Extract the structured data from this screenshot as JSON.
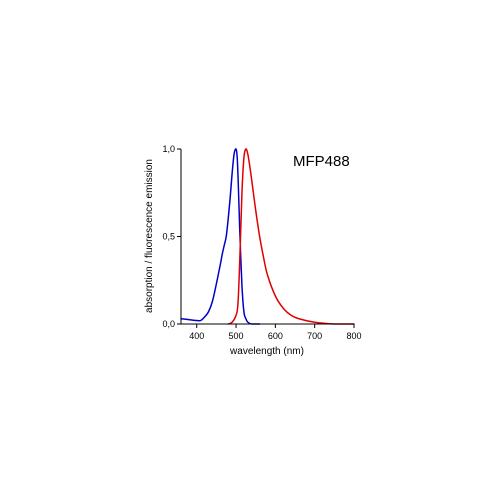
{
  "chart_data": {
    "type": "line",
    "title": "MFP488",
    "xlabel": "wavelength (nm)",
    "ylabel": "absorption / fluorescence emission",
    "xlim": [
      360,
      800
    ],
    "ylim": [
      0,
      1.0
    ],
    "x_ticks": [
      400,
      500,
      600,
      700,
      800
    ],
    "x_tick_labels": [
      "400",
      "500",
      "600",
      "700",
      "800"
    ],
    "y_ticks": [
      0,
      0.5,
      1.0
    ],
    "y_tick_labels": [
      "0,0",
      "0,5",
      "1,0"
    ],
    "grid": false,
    "series": [
      {
        "role": "absorption",
        "color": "#0000cc",
        "x": [
          360,
          380,
          400,
          410,
          420,
          430,
          440,
          450,
          460,
          465,
          470,
          475,
          480,
          485,
          490,
          495,
          500,
          503,
          506,
          510,
          515,
          520,
          525,
          530,
          540,
          560
        ],
        "y": [
          0.03,
          0.025,
          0.02,
          0.02,
          0.04,
          0.07,
          0.13,
          0.23,
          0.34,
          0.4,
          0.45,
          0.5,
          0.6,
          0.72,
          0.86,
          0.97,
          1.0,
          0.95,
          0.78,
          0.5,
          0.22,
          0.07,
          0.03,
          0.01,
          0.0,
          0.0
        ]
      },
      {
        "role": "fluorescence emission",
        "color": "#e00000",
        "x": [
          480,
          490,
          500,
          505,
          510,
          515,
          520,
          525,
          530,
          535,
          540,
          550,
          560,
          570,
          580,
          600,
          620,
          640,
          660,
          700,
          750,
          800
        ],
        "y": [
          0.0,
          0.01,
          0.05,
          0.12,
          0.4,
          0.75,
          0.95,
          1.0,
          0.97,
          0.9,
          0.82,
          0.65,
          0.5,
          0.38,
          0.28,
          0.16,
          0.09,
          0.05,
          0.03,
          0.01,
          0.0,
          0.0
        ]
      }
    ]
  }
}
